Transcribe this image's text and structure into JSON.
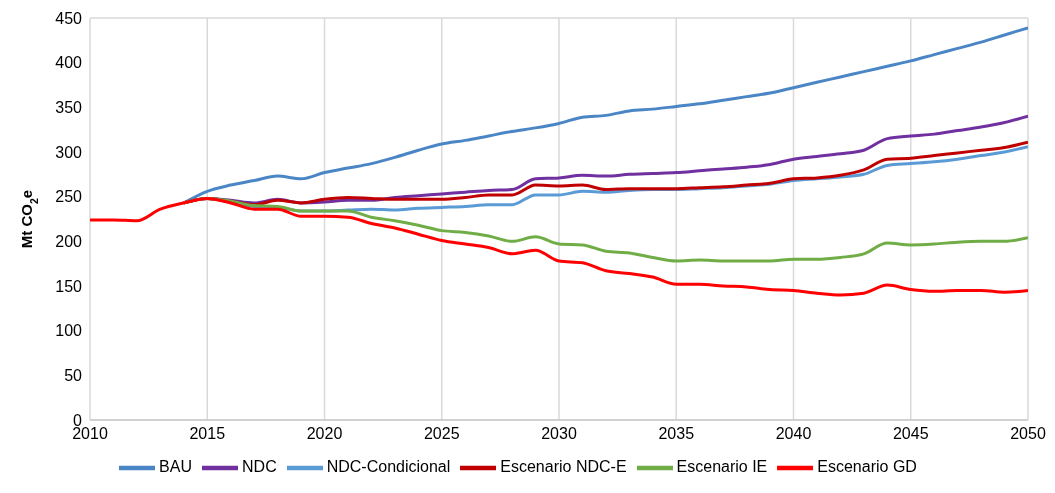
{
  "chart_data": {
    "type": "line",
    "ylabel": "Mt CO$_{2}$e",
    "x": [
      2010,
      2011,
      2012,
      2013,
      2014,
      2015,
      2016,
      2017,
      2018,
      2019,
      2020,
      2021,
      2022,
      2023,
      2024,
      2025,
      2026,
      2027,
      2028,
      2029,
      2030,
      2031,
      2032,
      2033,
      2034,
      2035,
      2036,
      2037,
      2038,
      2039,
      2040,
      2041,
      2042,
      2043,
      2044,
      2045,
      2046,
      2047,
      2048,
      2049,
      2050
    ],
    "xlim": [
      2010,
      2050
    ],
    "xticks": [
      2010,
      2015,
      2020,
      2025,
      2030,
      2035,
      2040,
      2045,
      2050
    ],
    "ylim": [
      0,
      450
    ],
    "yticks": [
      0,
      50,
      100,
      150,
      200,
      250,
      300,
      350,
      400,
      450
    ],
    "grid": true,
    "legend": "bottom",
    "marker": "none",
    "line_style": "solid",
    "series": [
      {
        "name": "BAU",
        "color": "#4a86c5",
        "values": [
          null,
          null,
          null,
          null,
          243,
          256,
          263,
          268,
          273,
          270,
          277,
          282,
          287,
          294,
          302,
          309,
          313,
          318,
          323,
          327,
          332,
          339,
          341,
          346,
          348,
          351,
          354,
          358,
          362,
          366,
          372,
          378,
          384,
          390,
          396,
          402,
          409,
          416,
          423,
          431,
          439
        ]
      },
      {
        "name": "NDC",
        "color": "#7030a0",
        "values": [
          null,
          null,
          null,
          null,
          243,
          248,
          246,
          243,
          247,
          243,
          244,
          246,
          246,
          249,
          251,
          253,
          255,
          257,
          258,
          270,
          271,
          274,
          273,
          275,
          276,
          277,
          279,
          281,
          283,
          286,
          292,
          295,
          298,
          302,
          315,
          318,
          320,
          324,
          328,
          333,
          340
        ]
      },
      {
        "name": "NDC-Condicional",
        "color": "#5b9bd5",
        "values": [
          null,
          null,
          null,
          null,
          243,
          248,
          244,
          239,
          238,
          234,
          234,
          235,
          236,
          235,
          237,
          238,
          239,
          241,
          241,
          252,
          252,
          256,
          255,
          257,
          258,
          258,
          259,
          260,
          262,
          264,
          268,
          270,
          272,
          275,
          285,
          287,
          289,
          292,
          296,
          300,
          306
        ]
      },
      {
        "name": "Escenario NDC-E",
        "color": "#c00000",
        "values": [
          null,
          null,
          null,
          null,
          243,
          248,
          245,
          241,
          246,
          243,
          247,
          249,
          248,
          247,
          247,
          247,
          249,
          252,
          252,
          263,
          262,
          263,
          258,
          259,
          259,
          259,
          260,
          261,
          263,
          265,
          270,
          271,
          274,
          280,
          292,
          293,
          296,
          299,
          302,
          305,
          311
        ]
      },
      {
        "name": "Escenario IE",
        "color": "#70ad47",
        "values": [
          null,
          null,
          null,
          null,
          243,
          248,
          245,
          240,
          239,
          234,
          234,
          234,
          227,
          223,
          218,
          212,
          210,
          206,
          200,
          205,
          197,
          196,
          189,
          187,
          182,
          178,
          179,
          178,
          178,
          178,
          180,
          180,
          182,
          186,
          198,
          196,
          197,
          199,
          200,
          200,
          204
        ]
      },
      {
        "name": "Escenario GD",
        "color": "#ff0000",
        "values": [
          224,
          224,
          223,
          236,
          243,
          248,
          243,
          236,
          236,
          228,
          228,
          227,
          220,
          215,
          208,
          201,
          197,
          193,
          186,
          190,
          178,
          176,
          167,
          164,
          160,
          152,
          152,
          150,
          149,
          146,
          145,
          142,
          140,
          142,
          151,
          146,
          144,
          145,
          145,
          143,
          145
        ]
      }
    ]
  }
}
